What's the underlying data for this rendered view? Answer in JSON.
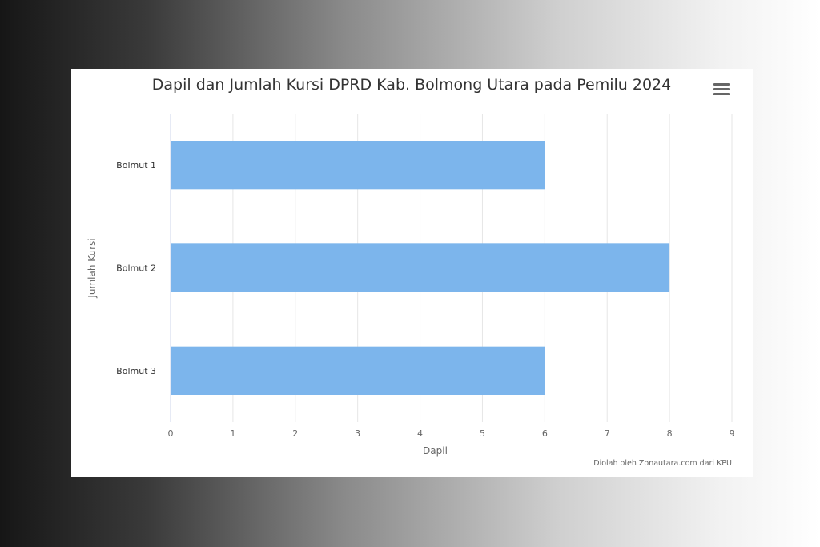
{
  "chart_data": {
    "type": "bar",
    "orientation": "horizontal",
    "title": "Dapil dan Jumlah Kursi DPRD Kab. Bolmong Utara pada Pemilu 2024",
    "categories": [
      "Bolmut 1",
      "Bolmut 2",
      "Bolmut 3"
    ],
    "values": [
      6,
      8,
      6
    ],
    "xlabel": "Dapil",
    "ylabel": "Jumlah Kursi",
    "xlim": [
      0,
      9
    ],
    "xticks": [
      "0",
      "1",
      "2",
      "3",
      "4",
      "5",
      "6",
      "7",
      "8",
      "9"
    ],
    "grid": true,
    "legend": "none",
    "bar_color": "#7cb5ec",
    "credit": "Diolah oleh Zonautara.com dari KPU"
  },
  "toolbar": {
    "menu_icon": "hamburger-menu-icon"
  }
}
